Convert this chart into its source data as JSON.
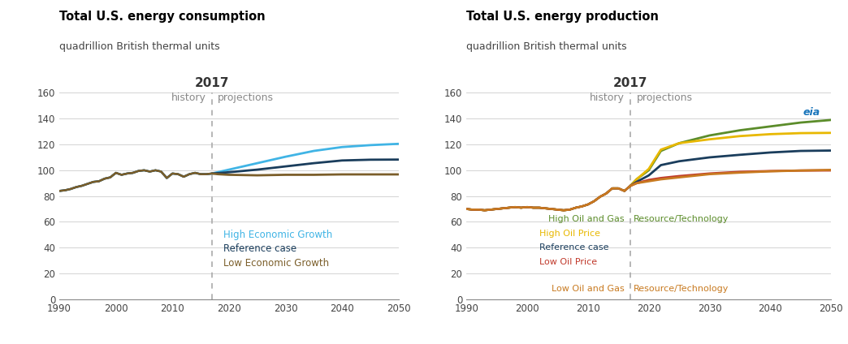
{
  "left_title": "Total U.S. energy consumption",
  "left_subtitle": "quadrillion British thermal units",
  "right_title": "Total U.S. energy production",
  "right_subtitle": "quadrillion British thermal units",
  "divider_year": 2017,
  "xlim": [
    1990,
    2050
  ],
  "ylim": [
    0,
    160
  ],
  "yticks": [
    0,
    20,
    40,
    60,
    80,
    100,
    120,
    140,
    160
  ],
  "xticks": [
    1990,
    2000,
    2010,
    2020,
    2030,
    2040,
    2050
  ],
  "left_series": {
    "high_econ": {
      "color": "#40B4E5",
      "label": "High Economic Growth",
      "history_years": [
        1990,
        1991,
        1992,
        1993,
        1994,
        1995,
        1996,
        1997,
        1998,
        1999,
        2000,
        2001,
        2002,
        2003,
        2004,
        2005,
        2006,
        2007,
        2008,
        2009,
        2010,
        2011,
        2012,
        2013,
        2014,
        2015,
        2016,
        2017
      ],
      "history_values": [
        84,
        84.5,
        85.5,
        87,
        88,
        89.5,
        91,
        91.5,
        93.5,
        94.5,
        98,
        96.5,
        97.5,
        98,
        99.5,
        100,
        99,
        100,
        99,
        94,
        97.5,
        97,
        95,
        97,
        98,
        97,
        97,
        97.5
      ],
      "proj_years": [
        2017,
        2018,
        2020,
        2025,
        2030,
        2035,
        2040,
        2045,
        2050
      ],
      "proj_values": [
        97.5,
        98.5,
        100.5,
        105.5,
        110.5,
        115.0,
        118.0,
        119.5,
        120.5
      ]
    },
    "reference": {
      "color": "#1A3D5C",
      "label": "Reference case",
      "history_years": [
        1990,
        1991,
        1992,
        1993,
        1994,
        1995,
        1996,
        1997,
        1998,
        1999,
        2000,
        2001,
        2002,
        2003,
        2004,
        2005,
        2006,
        2007,
        2008,
        2009,
        2010,
        2011,
        2012,
        2013,
        2014,
        2015,
        2016,
        2017
      ],
      "history_values": [
        84,
        84.5,
        85.5,
        87,
        88,
        89.5,
        91,
        91.5,
        93.5,
        94.5,
        98,
        96.5,
        97.5,
        98,
        99.5,
        100,
        99,
        100,
        99,
        94,
        97.5,
        97,
        95,
        97,
        98,
        97,
        97,
        97.5
      ],
      "proj_years": [
        2017,
        2018,
        2020,
        2025,
        2030,
        2035,
        2040,
        2045,
        2050
      ],
      "proj_values": [
        97.5,
        97.8,
        98.5,
        100.5,
        103.0,
        105.5,
        107.6,
        108.2,
        108.3
      ]
    },
    "low_econ": {
      "color": "#7B5E2A",
      "label": "Low Economic Growth",
      "history_years": [
        1990,
        1991,
        1992,
        1993,
        1994,
        1995,
        1996,
        1997,
        1998,
        1999,
        2000,
        2001,
        2002,
        2003,
        2004,
        2005,
        2006,
        2007,
        2008,
        2009,
        2010,
        2011,
        2012,
        2013,
        2014,
        2015,
        2016,
        2017
      ],
      "history_values": [
        84,
        84.5,
        85.5,
        87,
        88,
        89.5,
        91,
        91.5,
        93.5,
        94.5,
        98,
        96.5,
        97.5,
        98,
        99.5,
        100,
        99,
        100,
        99,
        94,
        97.5,
        97,
        95,
        97,
        98,
        97,
        97,
        97.5
      ],
      "proj_years": [
        2017,
        2018,
        2020,
        2025,
        2030,
        2035,
        2040,
        2045,
        2050
      ],
      "proj_values": [
        97.5,
        97.0,
        96.5,
        96.1,
        96.5,
        96.5,
        96.8,
        96.8,
        96.8
      ]
    }
  },
  "right_series": {
    "high_og_resource": {
      "color": "#5B8C2A",
      "label_left": "High Oil and Gas ",
      "label_right": "Resource/Technology",
      "history_years": [
        1990,
        1991,
        1992,
        1993,
        1994,
        1995,
        1996,
        1997,
        1998,
        1999,
        2000,
        2001,
        2002,
        2003,
        2004,
        2005,
        2006,
        2007,
        2008,
        2009,
        2010,
        2011,
        2012,
        2013,
        2014,
        2015,
        2016,
        2017
      ],
      "history_values": [
        70,
        69.5,
        69.5,
        69,
        69.5,
        70,
        70.5,
        71,
        71.5,
        71,
        71.5,
        71,
        71,
        70.5,
        70,
        69.5,
        69,
        69.5,
        71,
        72,
        73.5,
        76,
        79.5,
        82,
        86,
        86,
        84,
        88
      ],
      "proj_years": [
        2017,
        2018,
        2020,
        2022,
        2025,
        2030,
        2035,
        2040,
        2045,
        2050
      ],
      "proj_values": [
        88,
        93,
        100,
        115,
        121,
        127,
        131,
        134,
        137,
        139
      ]
    },
    "high_oil_price": {
      "color": "#E8B800",
      "label_left": "High Oil Price",
      "label_right": "",
      "history_years": [
        1990,
        1991,
        1992,
        1993,
        1994,
        1995,
        1996,
        1997,
        1998,
        1999,
        2000,
        2001,
        2002,
        2003,
        2004,
        2005,
        2006,
        2007,
        2008,
        2009,
        2010,
        2011,
        2012,
        2013,
        2014,
        2015,
        2016,
        2017
      ],
      "history_values": [
        70,
        69.5,
        69.5,
        69,
        69.5,
        70,
        70.5,
        71,
        71.5,
        71,
        71.5,
        71,
        71,
        70.5,
        70,
        69.5,
        69,
        69.5,
        71,
        72,
        73.5,
        76,
        79.5,
        82,
        86,
        86,
        84,
        88
      ],
      "proj_years": [
        2017,
        2018,
        2020,
        2022,
        2025,
        2030,
        2035,
        2040,
        2045,
        2050
      ],
      "proj_values": [
        88,
        93,
        101,
        116,
        121,
        124,
        126.5,
        128,
        128.8,
        129
      ]
    },
    "reference": {
      "color": "#1A3D5C",
      "label_left": "Reference case",
      "label_right": "",
      "history_years": [
        1990,
        1991,
        1992,
        1993,
        1994,
        1995,
        1996,
        1997,
        1998,
        1999,
        2000,
        2001,
        2002,
        2003,
        2004,
        2005,
        2006,
        2007,
        2008,
        2009,
        2010,
        2011,
        2012,
        2013,
        2014,
        2015,
        2016,
        2017
      ],
      "history_values": [
        70,
        69.5,
        69.5,
        69,
        69.5,
        70,
        70.5,
        71,
        71.5,
        71,
        71.5,
        71,
        71,
        70.5,
        70,
        69.5,
        69,
        69.5,
        71,
        72,
        73.5,
        76,
        79.5,
        82,
        86,
        86,
        84,
        88
      ],
      "proj_years": [
        2017,
        2018,
        2020,
        2022,
        2025,
        2030,
        2035,
        2040,
        2045,
        2050
      ],
      "proj_values": [
        88,
        91,
        96,
        104,
        107,
        110,
        112,
        113.8,
        115,
        115.3
      ]
    },
    "low_oil_price": {
      "color": "#C0392B",
      "label_left": "Low Oil Price",
      "label_right": "",
      "history_years": [
        1990,
        1991,
        1992,
        1993,
        1994,
        1995,
        1996,
        1997,
        1998,
        1999,
        2000,
        2001,
        2002,
        2003,
        2004,
        2005,
        2006,
        2007,
        2008,
        2009,
        2010,
        2011,
        2012,
        2013,
        2014,
        2015,
        2016,
        2017
      ],
      "history_values": [
        70,
        69.5,
        69.5,
        69,
        69.5,
        70,
        70.5,
        71,
        71.5,
        71,
        71.5,
        71,
        71,
        70.5,
        70,
        69.5,
        69,
        69.5,
        71,
        72,
        73.5,
        76,
        79.5,
        82,
        86,
        86,
        84,
        88
      ],
      "proj_years": [
        2017,
        2018,
        2020,
        2022,
        2025,
        2030,
        2035,
        2040,
        2045,
        2050
      ],
      "proj_values": [
        88,
        90,
        92.5,
        94,
        95.5,
        97.5,
        98.8,
        99.4,
        99.8,
        99.9
      ]
    },
    "low_og_resource": {
      "color": "#C87A20",
      "label_left": "Low Oil and Gas ",
      "label_right": "Resource/Technology",
      "history_years": [
        1990,
        1991,
        1992,
        1993,
        1994,
        1995,
        1996,
        1997,
        1998,
        1999,
        2000,
        2001,
        2002,
        2003,
        2004,
        2005,
        2006,
        2007,
        2008,
        2009,
        2010,
        2011,
        2012,
        2013,
        2014,
        2015,
        2016,
        2017
      ],
      "history_values": [
        70,
        69.5,
        69.5,
        69,
        69.5,
        70,
        70.5,
        71,
        71.5,
        71,
        71.5,
        71,
        71,
        70.5,
        70,
        69.5,
        69,
        69.5,
        71,
        72,
        73.5,
        76,
        79.5,
        82,
        86,
        86,
        84,
        88
      ],
      "proj_years": [
        2017,
        2018,
        2020,
        2022,
        2025,
        2030,
        2035,
        2040,
        2045,
        2050
      ],
      "proj_values": [
        88,
        90,
        91.5,
        93,
        94.5,
        97,
        98.2,
        99.2,
        99.8,
        100.3
      ]
    }
  }
}
